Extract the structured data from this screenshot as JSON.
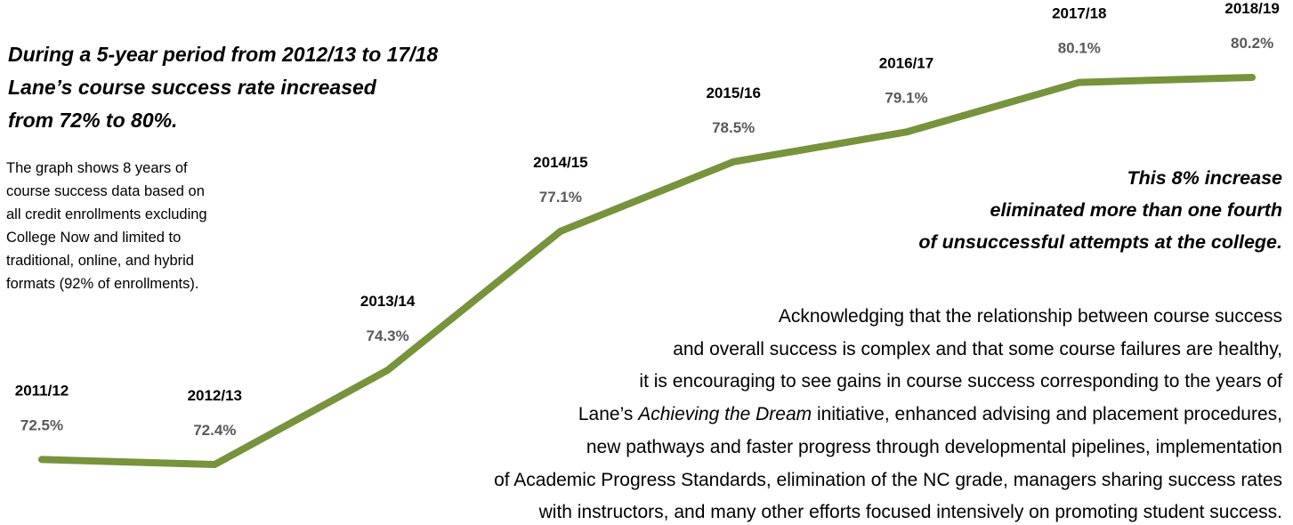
{
  "chart_data": {
    "type": "line",
    "categories": [
      "2011/12",
      "2012/13",
      "2013/14",
      "2014/15",
      "2015/16",
      "2016/17",
      "2017/18",
      "2018/19"
    ],
    "values": [
      72.5,
      72.4,
      74.3,
      77.1,
      78.5,
      79.1,
      80.1,
      80.2
    ],
    "value_labels": [
      "72.5%",
      "72.4%",
      "74.3%",
      "77.1%",
      "78.5%",
      "79.1%",
      "80.1%",
      "80.2%"
    ],
    "color": "#77933c"
  },
  "headline": [
    "During a 5-year period from 2012/13 to 17/18",
    "Lane’s course success rate increased",
    "from 72% to 80%."
  ],
  "note": [
    "The graph shows 8 years of",
    "course success data based on",
    "all credit enrollments excluding",
    "College Now and limited to",
    "traditional, online, and hybrid",
    "formats (92% of enrollments)."
  ],
  "callout": [
    "This 8% increase",
    "eliminated more than one fourth",
    "of unsuccessful attempts at the college."
  ],
  "commentary": [
    "Acknowledging that the relationship between course success",
    "and overall success is complex and that some course failures are healthy,",
    "it is encouraging to see gains in course success corresponding to the years of",
    [
      "Lane’s ",
      "Achieving the Dream",
      " initiative, enhanced advising and placement procedures,"
    ],
    "new pathways and faster progress through developmental pipelines, implementation",
    "of Academic Progress Standards, elimination of the NC grade, managers sharing success rates",
    "with instructors, and many other efforts focused intensively on promoting student success."
  ]
}
